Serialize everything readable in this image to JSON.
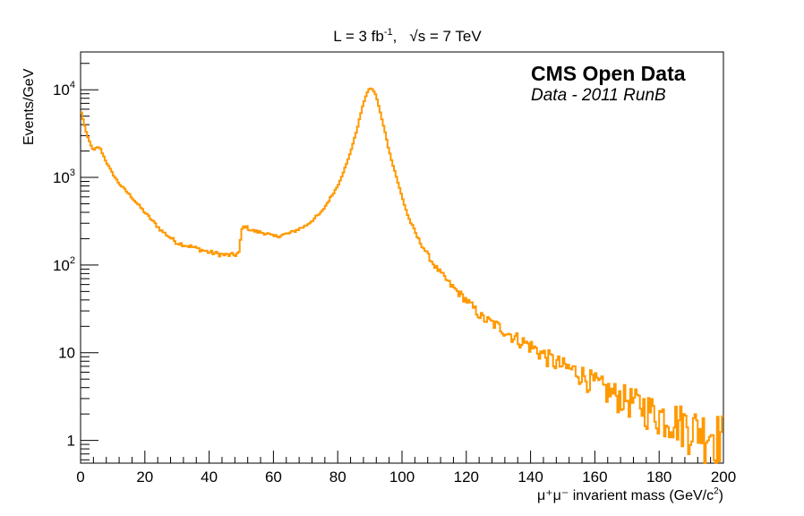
{
  "chart_data": {
    "type": "histogram-step",
    "title_parts": {
      "lumi": "L = 3 fb",
      "lumi_sup": "-1",
      "sep": ",",
      "sqrt": "√",
      "s_energy": "s = 7 TeV"
    },
    "label_main": "CMS Open Data",
    "label_sub": "Data - 2011 RunB",
    "xlabel": {
      "text": "μ⁺μ⁻ invarient mass (GeV/c",
      "sup": "2",
      "end": ")"
    },
    "ylabel": "Events/GeV",
    "xlim": [
      0,
      200
    ],
    "ylim": [
      0.55,
      27000
    ],
    "yscale": "log",
    "x_ticks": [
      "0",
      "20",
      "40",
      "60",
      "80",
      "100",
      "120",
      "140",
      "160",
      "180",
      "200"
    ],
    "y_ticks": [
      {
        "value": 1,
        "base": "1",
        "exp": ""
      },
      {
        "value": 10,
        "base": "10",
        "exp": ""
      },
      {
        "value": 100,
        "base": "10",
        "exp": "2"
      },
      {
        "value": 1000,
        "base": "10",
        "exp": "3"
      },
      {
        "value": 10000,
        "base": "10",
        "exp": "4"
      }
    ],
    "line_color": "#ff9900",
    "x": [
      0,
      2,
      4,
      5,
      6,
      8,
      10,
      12,
      15,
      20,
      25,
      30,
      35,
      40,
      45,
      48,
      49.5,
      50,
      51,
      53,
      55,
      58,
      60,
      65,
      70,
      75,
      80,
      83,
      85,
      86,
      87,
      88,
      89,
      90,
      91,
      92,
      93,
      94,
      95,
      96,
      98,
      100,
      102,
      105,
      110,
      115,
      120,
      125,
      130,
      135,
      140,
      145,
      150,
      155,
      160,
      165,
      170,
      175,
      180,
      185,
      190,
      195,
      200
    ],
    "values": [
      6000,
      3000,
      2000,
      2200,
      2200,
      1500,
      1100,
      850,
      650,
      400,
      250,
      180,
      160,
      140,
      130,
      130,
      140,
      250,
      280,
      250,
      240,
      230,
      210,
      230,
      280,
      400,
      800,
      1500,
      2600,
      3500,
      5000,
      7000,
      9000,
      10500,
      10000,
      8500,
      6000,
      4200,
      3000,
      2000,
      1100,
      600,
      350,
      200,
      100,
      60,
      40,
      25,
      20,
      15,
      12,
      9,
      7,
      6,
      4.5,
      3.5,
      3,
      2.5,
      2,
      1.8,
      1.5,
      1.3,
      1.2
    ]
  }
}
